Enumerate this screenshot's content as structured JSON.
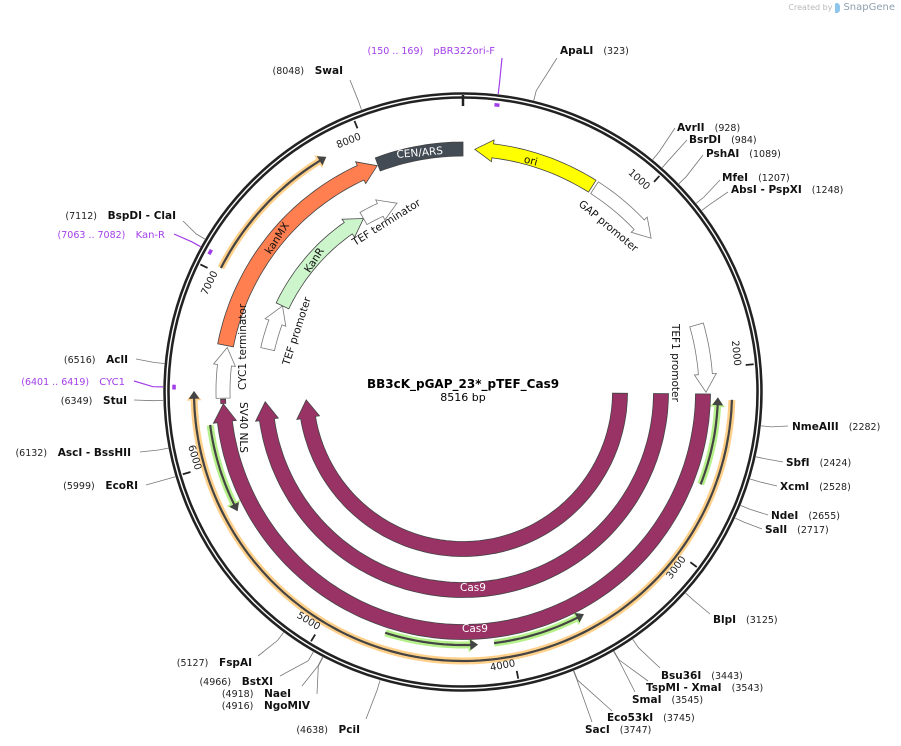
{
  "credit": {
    "prefix": "Created by",
    "brand": "SnapGene"
  },
  "plasmid": {
    "name": "BB3cK_pGAP_23*_pTEF_Cas9",
    "length_label": "8516 bp",
    "length": 8516
  },
  "ticks": [
    {
      "pos": 1000,
      "label": "1000"
    },
    {
      "pos": 2000,
      "label": "2000"
    },
    {
      "pos": 3000,
      "label": "3000"
    },
    {
      "pos": 4000,
      "label": "4000"
    },
    {
      "pos": 5000,
      "label": "5000"
    },
    {
      "pos": 6000,
      "label": "6000"
    },
    {
      "pos": 7000,
      "label": "7000"
    },
    {
      "pos": 8000,
      "label": "8000"
    }
  ],
  "enzymes": [
    {
      "name": "SwaI",
      "pos": 8048,
      "pos_label": "(8048)"
    },
    {
      "name": "ApaLI",
      "pos": 323,
      "pos_label": "(323)"
    },
    {
      "name": "AvrII",
      "pos": 928,
      "pos_label": "(928)"
    },
    {
      "name": "BsrDI",
      "pos": 984,
      "pos_label": "(984)"
    },
    {
      "name": "PshAI",
      "pos": 1089,
      "pos_label": "(1089)"
    },
    {
      "name": "MfeI",
      "pos": 1207,
      "pos_label": "(1207)"
    },
    {
      "name": "AbsI   - PspXI",
      "pos": 1248,
      "pos_label": "(1248)"
    },
    {
      "name": "NmeAIII",
      "pos": 2282,
      "pos_label": "(2282)"
    },
    {
      "name": "SbfI",
      "pos": 2424,
      "pos_label": "(2424)"
    },
    {
      "name": "XcmI",
      "pos": 2528,
      "pos_label": "(2528)"
    },
    {
      "name": "NdeI",
      "pos": 2655,
      "pos_label": "(2655)"
    },
    {
      "name": "SalI",
      "pos": 2717,
      "pos_label": "(2717)"
    },
    {
      "name": "BlpI",
      "pos": 3125,
      "pos_label": "(3125)"
    },
    {
      "name": "Bsu36I",
      "pos": 3443,
      "pos_label": "(3443)"
    },
    {
      "name": "TspMI   - XmaI",
      "pos": 3543,
      "pos_label": "(3543)"
    },
    {
      "name": "SmaI",
      "pos": 3545,
      "pos_label": "(3545)"
    },
    {
      "name": "Eco53kI",
      "pos": 3745,
      "pos_label": "(3745)"
    },
    {
      "name": "SacI",
      "pos": 3747,
      "pos_label": "(3747)"
    },
    {
      "name": "PciI",
      "pos": 4638,
      "pos_label": "(4638)"
    },
    {
      "name": "NgoMIV",
      "pos": 4916,
      "pos_label": "(4916)"
    },
    {
      "name": "NaeI",
      "pos": 4918,
      "pos_label": "(4918)"
    },
    {
      "name": "BstXI",
      "pos": 4966,
      "pos_label": "(4966)"
    },
    {
      "name": "FspAI",
      "pos": 5127,
      "pos_label": "(5127)"
    },
    {
      "name": "EcoRI",
      "pos": 5999,
      "pos_label": "(5999)"
    },
    {
      "name": "AscI   - BssHII",
      "pos": 6132,
      "pos_label": "(6132)"
    },
    {
      "name": "StuI",
      "pos": 6349,
      "pos_label": "(6349)"
    },
    {
      "name": "AclI",
      "pos": 6516,
      "pos_label": "(6516)"
    },
    {
      "name": "BspDI   - ClaI",
      "pos": 7112,
      "pos_label": "(7112)"
    }
  ],
  "primers": [
    {
      "name": "pBR322ori-F",
      "start": 150,
      "end": 169,
      "range_label": "(150 .. 169)"
    },
    {
      "name": "CYC1",
      "start": 6401,
      "end": 6419,
      "range_label": "(6401 .. 6419)"
    },
    {
      "name": "Kan-R",
      "start": 7063,
      "end": 7082,
      "range_label": "(7063 .. 7082)"
    }
  ],
  "features": [
    {
      "name": "CEN/ARS",
      "start": 8030,
      "end": 8516,
      "direction": "none",
      "color": "#434b55",
      "text_color": "#ffffff"
    },
    {
      "name": "ori",
      "start": 66,
      "end": 760,
      "direction": "reverse",
      "color": "#ffff00",
      "text_color": "#111111"
    },
    {
      "name": "GAP promoter",
      "start": 775,
      "end": 1200,
      "direction": "forward",
      "color": "#ffffff"
    },
    {
      "name": "TEF1 promoter",
      "start": 1750,
      "end": 2130,
      "direction": "forward",
      "color": "#ffffff"
    },
    {
      "name": "Cas9",
      "start": 2140,
      "end": 6320,
      "direction": "forward",
      "color": "#993366",
      "text_color": "#ffffff"
    },
    {
      "name": "Cas9",
      "start": 2140,
      "end": 6320,
      "direction": "forward",
      "color": "#993366",
      "text_color": "#ffffff"
    },
    {
      "name": "Cas9",
      "start": 2140,
      "end": 6320,
      "direction": "forward",
      "color": "#993366",
      "text_color": "#ffffff"
    },
    {
      "name": "SV40 NLS",
      "start": 6322,
      "end": 6346,
      "direction": "none",
      "color": "#993366"
    },
    {
      "name": "CYC1 terminator",
      "start": 6352,
      "end": 6640,
      "direction": "forward",
      "color": "#ffffff"
    },
    {
      "name": "kanMX",
      "start": 6650,
      "end": 8025,
      "direction": "forward",
      "color": "#ff7f50",
      "text_color": "#111111"
    },
    {
      "name": "TEF promoter",
      "start": 6680,
      "end": 6990,
      "direction": "forward",
      "color": "#ffffff"
    },
    {
      "name": "KanR",
      "start": 6990,
      "end": 7810,
      "direction": "forward",
      "color": "#ccf5cc",
      "text_color": "#111111"
    },
    {
      "name": "TEF terminator",
      "start": 7810,
      "end": 8060,
      "direction": "forward",
      "color": "#ffffff"
    }
  ],
  "orfs": [
    {
      "start": 7030,
      "end": 7800,
      "direction": "forward",
      "color": "#ffd08a"
    },
    {
      "start": 2170,
      "end": 6390,
      "direction": "forward",
      "color": "#ffd08a"
    },
    {
      "start": 2160,
      "end": 2630,
      "direction": "reverse",
      "color": "#b6f08a"
    },
    {
      "start": 4180,
      "end": 4680,
      "direction": "reverse",
      "color": "#b6f08a"
    },
    {
      "start": 3585,
      "end": 4090,
      "direction": "reverse",
      "color": "#b6f08a"
    },
    {
      "start": 5730,
      "end": 6210,
      "direction": "reverse",
      "color": "#b6f08a"
    }
  ],
  "colors": {
    "backbone": "#222222",
    "primer": "#a23ee8",
    "leader": "#777777"
  }
}
